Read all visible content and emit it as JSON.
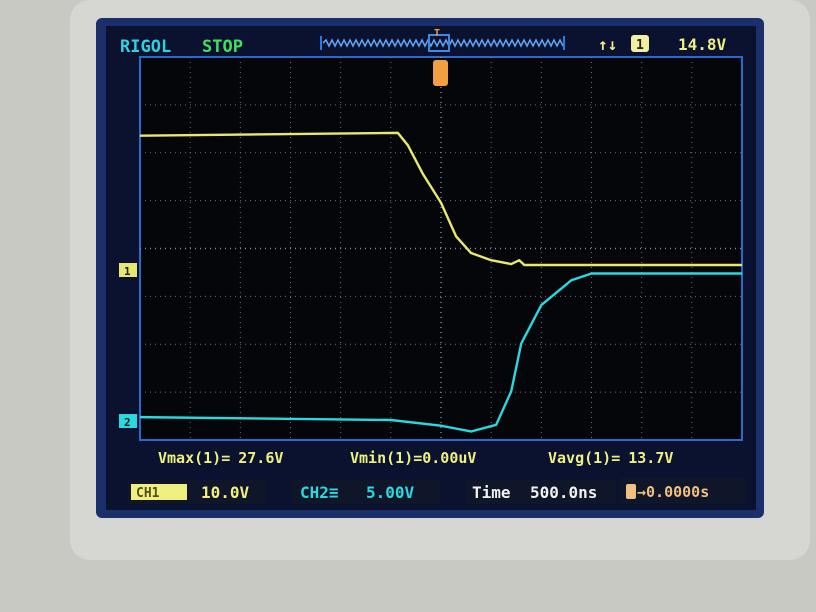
{
  "header": {
    "brand": "RIGOL",
    "run_state": "STOP",
    "trigger_marker": "T",
    "trigger_edge": "↑↓",
    "trigger_source": "1",
    "trigger_level": "14.8V"
  },
  "measurements": [
    {
      "label": "Vmax(1)=",
      "value": "27.6V"
    },
    {
      "label": "Vmin(1)=",
      "value": "0.00uV"
    },
    {
      "label": "Vavg(1)=",
      "value": "13.7V"
    }
  ],
  "status_bar": {
    "ch1_label": "CH1",
    "ch1_scale": "10.0V",
    "ch2_label": "CH2",
    "ch2_coupling": "≡",
    "ch2_scale": "5.00V",
    "time_label": "Time",
    "time_scale": "500.0ns",
    "trigger_offset": "→0.0000s",
    "trigger_offset_icon": "T"
  },
  "markers": {
    "ch1": "1",
    "ch2": "2"
  },
  "colors": {
    "ch1": "#e8e870",
    "ch2": "#2ad8e0",
    "trigger": "#f0a040",
    "brand": "#30d0e0",
    "stop": "#40e060"
  },
  "chart_data": {
    "type": "line",
    "xlabel": "",
    "ylabel": "",
    "x_unit": "ns",
    "x_per_div": 500,
    "x_divs": 12,
    "xlim": [
      -3000,
      3000
    ],
    "grid": true,
    "series": [
      {
        "name": "CH1",
        "volts_per_div": 10,
        "x": [
          -3000,
          -430,
          -330,
          -180,
          0,
          150,
          300,
          500,
          700,
          780,
          830,
          3000
        ],
        "y": [
          27.0,
          27.6,
          25,
          19,
          13,
          6,
          2.5,
          1,
          0.2,
          1,
          0,
          0
        ]
      },
      {
        "name": "CH2",
        "volts_per_div": 5,
        "x": [
          -3000,
          -500,
          0,
          300,
          550,
          700,
          800,
          1000,
          1300,
          1500,
          3000
        ],
        "y": [
          0.3,
          0,
          -0.6,
          -1.2,
          -0.5,
          3,
          8,
          12,
          14.6,
          15.3,
          15.3
        ]
      }
    ]
  }
}
